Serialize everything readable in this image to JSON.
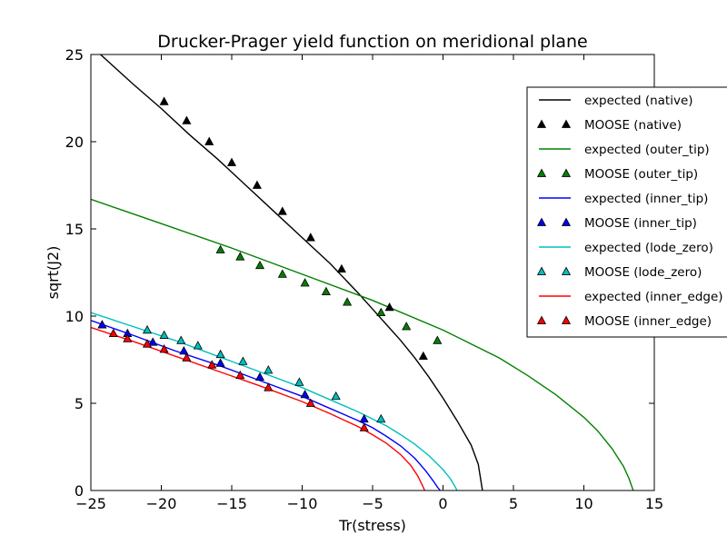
{
  "chart_data": {
    "type": "line",
    "title": "Drucker-Prager yield function on meridional plane",
    "xlabel": "Tr(stress)",
    "ylabel": "sqrt(J2)",
    "xlim": [
      -25,
      15
    ],
    "ylim": [
      0,
      25
    ],
    "xticks": [
      -25,
      -20,
      -15,
      -10,
      -5,
      0,
      5,
      10,
      15
    ],
    "yticks": [
      0,
      5,
      10,
      15,
      20,
      25
    ],
    "grid": false,
    "legend_position": "right",
    "series": [
      {
        "name": "expected (native)",
        "kind": "line",
        "color": "#000000",
        "x": [
          -25,
          -22,
          -20,
          -18,
          -16,
          -14,
          -12,
          -10,
          -8,
          -6,
          -5,
          -4,
          -3,
          -2,
          -1,
          0,
          1,
          2,
          2.5,
          2.8
        ],
        "y": [
          25.5,
          23.3,
          21.9,
          20.4,
          19.0,
          17.5,
          16.0,
          14.5,
          13.0,
          11.3,
          10.4,
          9.5,
          8.6,
          7.6,
          6.5,
          5.3,
          4.0,
          2.6,
          1.5,
          0
        ]
      },
      {
        "name": "MOOSE (native)",
        "kind": "markers",
        "color": "#000000",
        "x": [
          -19.8,
          -18.2,
          -16.6,
          -15.0,
          -13.2,
          -11.4,
          -9.4,
          -7.2,
          -3.8,
          -1.4
        ],
        "y": [
          22.3,
          21.2,
          20.0,
          18.8,
          17.5,
          16.0,
          14.5,
          12.7,
          10.5,
          7.7
        ]
      },
      {
        "name": "expected (outer_tip)",
        "kind": "line",
        "color": "#008000",
        "x": [
          -25,
          -20,
          -15,
          -10,
          -5,
          0,
          2,
          4,
          6,
          8,
          10,
          11,
          12,
          12.8,
          13.2,
          13.5
        ],
        "y": [
          16.7,
          15.3,
          13.9,
          12.4,
          10.9,
          9.2,
          8.4,
          7.6,
          6.6,
          5.5,
          4.2,
          3.4,
          2.4,
          1.4,
          0.7,
          0
        ]
      },
      {
        "name": "MOOSE (outer_tip)",
        "kind": "markers",
        "color": "#008000",
        "x": [
          -15.8,
          -14.4,
          -13.0,
          -11.4,
          -9.8,
          -8.3,
          -6.8,
          -4.4,
          -2.6,
          -0.4
        ],
        "y": [
          13.8,
          13.4,
          12.9,
          12.4,
          11.9,
          11.4,
          10.8,
          10.2,
          9.4,
          8.6
        ]
      },
      {
        "name": "expected (inner_tip)",
        "kind": "line",
        "color": "#0000ff",
        "x": [
          -25,
          -22,
          -19,
          -16,
          -13,
          -10,
          -8,
          -6,
          -5,
          -4,
          -3,
          -2,
          -1.2,
          -0.7,
          -0.4,
          -0.2
        ],
        "y": [
          9.75,
          8.9,
          8.0,
          7.2,
          6.3,
          5.4,
          4.7,
          4.0,
          3.6,
          3.1,
          2.55,
          1.85,
          1.1,
          0.55,
          0.2,
          0
        ]
      },
      {
        "name": "MOOSE (inner_tip)",
        "kind": "markers",
        "color": "#0000ff",
        "x": [
          -24.2,
          -22.4,
          -20.6,
          -18.4,
          -15.8,
          -13.0,
          -9.8,
          -5.6
        ],
        "y": [
          9.5,
          9.0,
          8.5,
          8.0,
          7.3,
          6.5,
          5.5,
          4.1
        ]
      },
      {
        "name": "expected (lode_zero)",
        "kind": "line",
        "color": "#00bfbf",
        "x": [
          -25,
          -22,
          -19,
          -16,
          -13,
          -10,
          -8,
          -6,
          -4,
          -3,
          -2,
          -1,
          0,
          0.5,
          0.8,
          1.0
        ],
        "y": [
          10.2,
          9.4,
          8.6,
          7.7,
          6.8,
          5.9,
          5.2,
          4.5,
          3.7,
          3.2,
          2.65,
          2.0,
          1.2,
          0.7,
          0.3,
          0
        ]
      },
      {
        "name": "MOOSE (lode_zero)",
        "kind": "markers",
        "color": "#00bfbf",
        "x": [
          -21.0,
          -19.8,
          -18.6,
          -17.4,
          -15.8,
          -14.2,
          -12.4,
          -10.2,
          -7.6,
          -4.4
        ],
        "y": [
          9.2,
          8.9,
          8.6,
          8.3,
          7.8,
          7.4,
          6.9,
          6.2,
          5.4,
          4.1
        ]
      },
      {
        "name": "expected (inner_edge)",
        "kind": "line",
        "color": "#ff0000",
        "x": [
          -25,
          -22,
          -19,
          -16,
          -13,
          -10,
          -8,
          -6,
          -5,
          -4,
          -3,
          -2.3,
          -1.8,
          -1.5,
          -1.3
        ],
        "y": [
          9.35,
          8.55,
          7.7,
          6.85,
          6.0,
          5.1,
          4.4,
          3.65,
          3.2,
          2.7,
          2.05,
          1.45,
          0.85,
          0.35,
          0
        ]
      },
      {
        "name": "MOOSE (inner_edge)",
        "kind": "markers",
        "color": "#ff0000",
        "x": [
          -23.4,
          -22.4,
          -21.0,
          -19.8,
          -18.2,
          -16.4,
          -14.4,
          -12.4,
          -9.4,
          -5.6
        ],
        "y": [
          9.0,
          8.7,
          8.4,
          8.1,
          7.6,
          7.2,
          6.6,
          5.9,
          5.0,
          3.6
        ]
      }
    ]
  }
}
